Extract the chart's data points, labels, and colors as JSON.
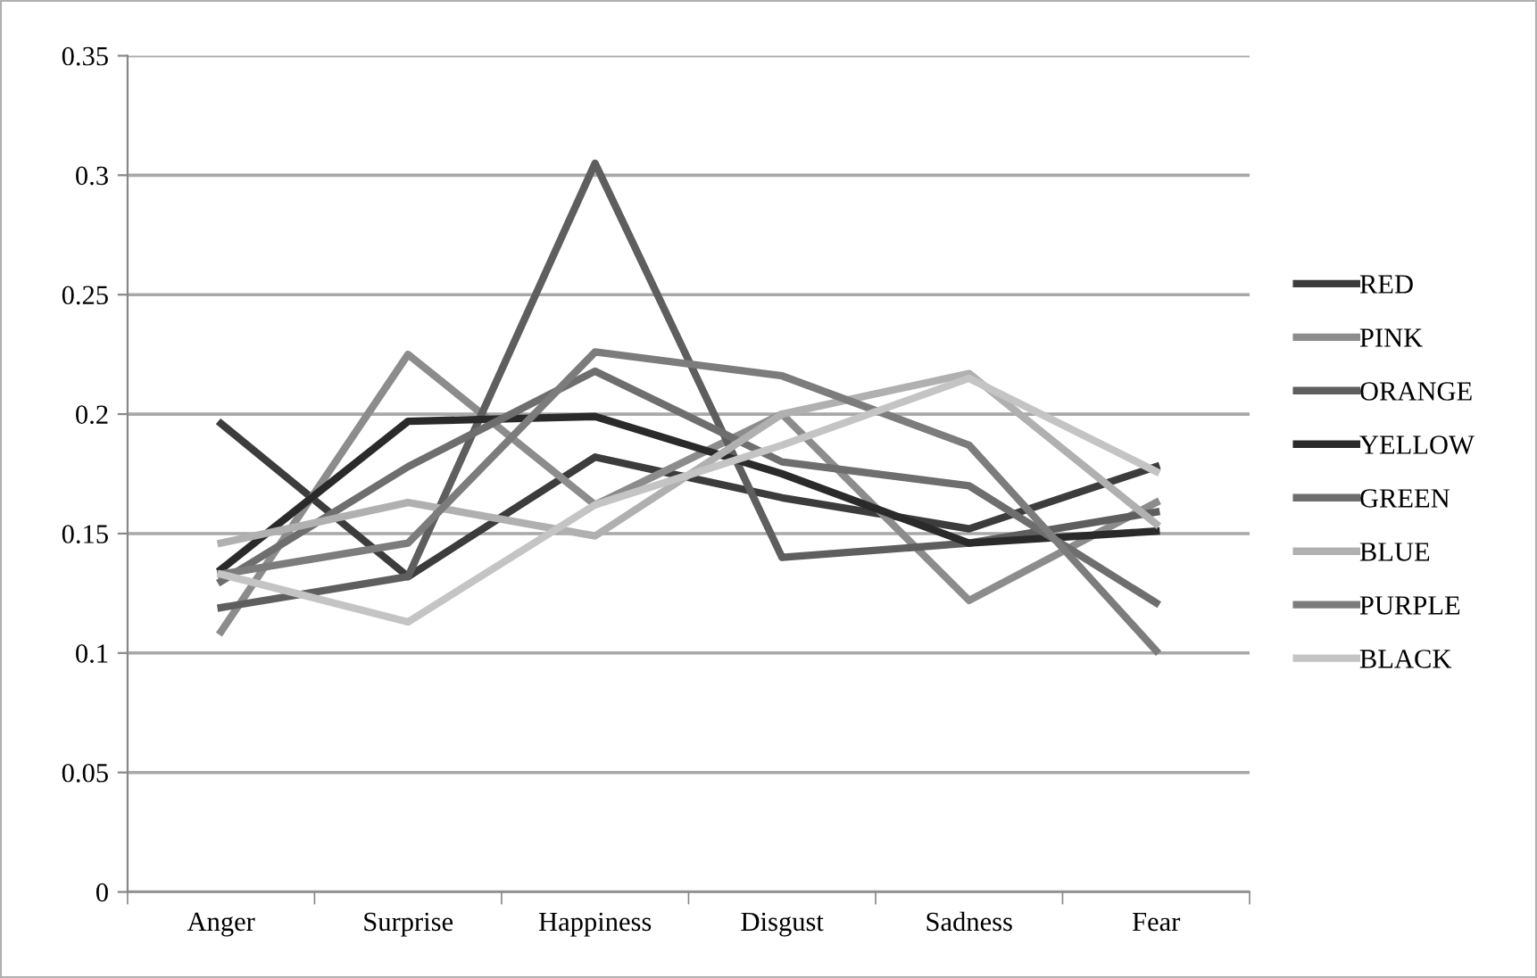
{
  "chart_data": {
    "type": "line",
    "categories": [
      "Anger",
      "Surprise",
      "Happiness",
      "Disgust",
      "Sadness",
      "Fear"
    ],
    "series": [
      {
        "name": "RED",
        "color": "#3c3c3c",
        "values": [
          0.196,
          0.132,
          0.182,
          0.165,
          0.152,
          0.178
        ]
      },
      {
        "name": "PINK",
        "color": "#8c8c8c",
        "values": [
          0.109,
          0.225,
          0.162,
          0.2,
          0.122,
          0.163
        ]
      },
      {
        "name": "ORANGE",
        "color": "#5e5e5e",
        "values": [
          0.119,
          0.132,
          0.305,
          0.14,
          0.146,
          0.159
        ]
      },
      {
        "name": "YELLOW",
        "color": "#2a2a2a",
        "values": [
          0.135,
          0.197,
          0.199,
          0.175,
          0.146,
          0.151
        ]
      },
      {
        "name": "GREEN",
        "color": "#6e6e6e",
        "values": [
          0.13,
          0.178,
          0.218,
          0.18,
          0.17,
          0.121
        ]
      },
      {
        "name": "BLUE",
        "color": "#b0b0b0",
        "values": [
          0.146,
          0.163,
          0.149,
          0.2,
          0.217,
          0.154
        ]
      },
      {
        "name": "PURPLE",
        "color": "#7c7c7c",
        "values": [
          0.133,
          0.146,
          0.226,
          0.216,
          0.187,
          0.101
        ]
      },
      {
        "name": "BLACK",
        "color": "#c4c4c4",
        "values": [
          0.133,
          0.113,
          0.162,
          0.187,
          0.215,
          0.176
        ]
      }
    ],
    "ylim": [
      0,
      0.35
    ],
    "yticks": [
      0,
      0.05,
      0.1,
      0.15,
      0.2,
      0.25,
      0.3,
      0.35
    ],
    "grid": "y",
    "legend": "right",
    "marker": "none",
    "line_style": "solid"
  }
}
